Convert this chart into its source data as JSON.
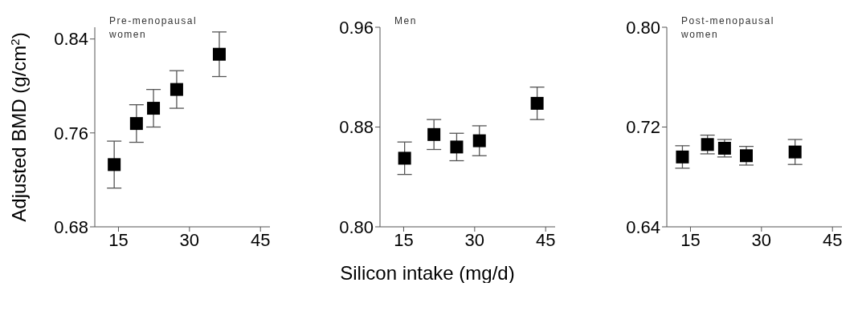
{
  "chart_data": [
    {
      "type": "scatter",
      "ylabel": "Adjusted BMD (g/cm$^{2}$)",
      "annotations": [
        "Pre-menopausal women"
      ],
      "marker": "square",
      "xlim": [
        10,
        47
      ],
      "xticks": [
        15,
        30,
        45
      ],
      "ylim": [
        0.68,
        0.85
      ],
      "yticks": [
        0.68,
        0.76,
        0.84
      ],
      "series": [
        {
          "color": "#000000",
          "x": [
            14.1,
            18.8,
            22.4,
            27.3,
            36.3
          ],
          "values": [
            0.733,
            0.768,
            0.781,
            0.797,
            0.827
          ],
          "errors": [
            0.02,
            0.016,
            0.016,
            0.016,
            0.019
          ]
        }
      ]
    },
    {
      "type": "scatter",
      "xlabel": "Silicon intake (mg/d)",
      "annotations": [
        "Men"
      ],
      "marker": "square",
      "xlim": [
        10,
        47
      ],
      "xticks": [
        15,
        30,
        45
      ],
      "ylim": [
        0.8,
        0.96
      ],
      "yticks": [
        {
          "value": 0.8,
          "label": "0.80"
        },
        0.88,
        0.96
      ],
      "series": [
        {
          "color": "#000000",
          "x": [
            15.2,
            21.4,
            26.2,
            31.0,
            43.2
          ],
          "values": [
            0.855,
            0.874,
            0.864,
            0.869,
            0.899
          ],
          "errors": [
            0.013,
            0.012,
            0.011,
            0.012,
            0.013
          ]
        }
      ]
    },
    {
      "type": "scatter",
      "annotations": [
        "Post-menopausal women"
      ],
      "marker": "square",
      "xlim": [
        10,
        47
      ],
      "xticks": [
        15,
        30,
        45
      ],
      "ylim": [
        0.64,
        0.8
      ],
      "yticks": [
        0.64,
        0.72,
        {
          "value": 0.8,
          "label": "0.80"
        }
      ],
      "series": [
        {
          "color": "#000000",
          "x": [
            13.3,
            18.6,
            22.2,
            26.8,
            37.1
          ],
          "values": [
            0.696,
            0.706,
            0.703,
            0.697,
            0.7
          ],
          "errors": [
            0.009,
            0.0075,
            0.007,
            0.0075,
            0.01
          ]
        }
      ]
    }
  ]
}
